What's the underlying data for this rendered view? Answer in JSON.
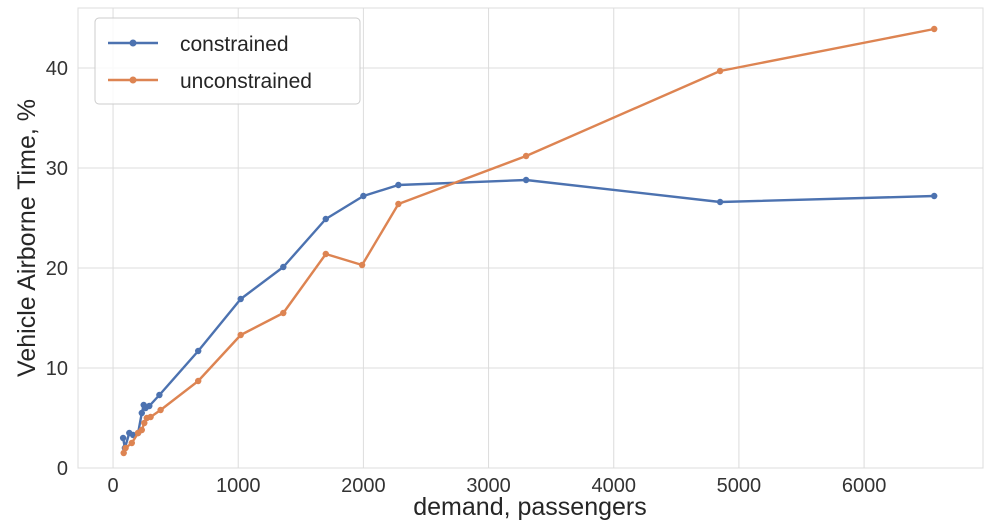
{
  "chart_data": {
    "type": "line",
    "title": "",
    "xlabel": "demand, passengers",
    "ylabel": "Vehicle Airborne Time, %",
    "xlim": [
      -280,
      6950
    ],
    "ylim": [
      0,
      46
    ],
    "xticks": [
      0,
      1000,
      2000,
      3000,
      4000,
      5000,
      6000
    ],
    "yticks": [
      0,
      10,
      20,
      30,
      40
    ],
    "grid": true,
    "legend_position": "upper-left",
    "series": [
      {
        "name": "constrained",
        "color": "#4c72b0",
        "points": [
          [
            80,
            3.0
          ],
          [
            95,
            2.0
          ],
          [
            130,
            3.5
          ],
          [
            160,
            3.3
          ],
          [
            200,
            3.5
          ],
          [
            230,
            5.5
          ],
          [
            245,
            6.3
          ],
          [
            260,
            6.0
          ],
          [
            290,
            6.2
          ],
          [
            370,
            7.3
          ],
          [
            680,
            11.7
          ],
          [
            1020,
            16.9
          ],
          [
            1360,
            20.1
          ],
          [
            1700,
            24.9
          ],
          [
            2000,
            27.2
          ],
          [
            2280,
            28.3
          ],
          [
            3300,
            28.8
          ],
          [
            4850,
            26.6
          ],
          [
            6560,
            27.2
          ]
        ]
      },
      {
        "name": "unconstrained",
        "color": "#dd8452",
        "points": [
          [
            85,
            1.5
          ],
          [
            100,
            2.0
          ],
          [
            150,
            2.5
          ],
          [
            200,
            3.5
          ],
          [
            230,
            3.8
          ],
          [
            250,
            4.5
          ],
          [
            270,
            5.0
          ],
          [
            300,
            5.1
          ],
          [
            380,
            5.8
          ],
          [
            680,
            8.7
          ],
          [
            1020,
            13.3
          ],
          [
            1360,
            15.5
          ],
          [
            1700,
            21.4
          ],
          [
            1990,
            20.3
          ],
          [
            2280,
            26.4
          ],
          [
            3300,
            31.2
          ],
          [
            4850,
            39.7
          ],
          [
            6560,
            43.9
          ]
        ]
      }
    ]
  }
}
